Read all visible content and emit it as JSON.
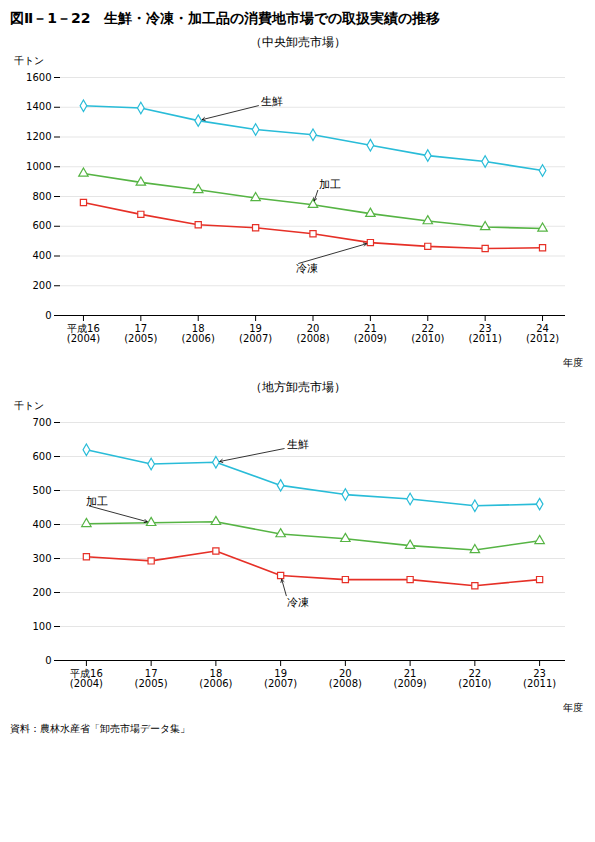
{
  "title": "図Ⅱ－1－22　生鮮・冷凍・加工品の消費地市場での取扱実績の推移",
  "source": "資料：農林水産省「卸売市場データ集」",
  "chart_data": [
    {
      "type": "line",
      "title": "（中央卸売市場）",
      "categories": [
        "平成16",
        "17",
        "18",
        "19",
        "20",
        "21",
        "22",
        "23",
        "24"
      ],
      "category_sublabels": [
        "(2004)",
        "(2005)",
        "(2006)",
        "(2007)",
        "(2008)",
        "(2009)",
        "(2010)",
        "(2011)",
        "(2012)"
      ],
      "xlabel": "年度",
      "ylabel": "千トン",
      "ylim": [
        0,
        1600
      ],
      "yticks": [
        0,
        200,
        400,
        600,
        800,
        1000,
        1200,
        1400,
        1600
      ],
      "grid": true,
      "series": [
        {
          "name": "生鮮",
          "color": "#29bcd8",
          "marker": "diamond",
          "values": [
            1410,
            1395,
            1310,
            1250,
            1215,
            1145,
            1075,
            1035,
            975
          ]
        },
        {
          "name": "加工",
          "color": "#56b444",
          "marker": "triangle",
          "values": [
            955,
            895,
            845,
            790,
            745,
            685,
            635,
            595,
            585
          ]
        },
        {
          "name": "冷凍",
          "color": "#e63027",
          "marker": "square",
          "values": [
            760,
            680,
            610,
            590,
            550,
            490,
            465,
            450,
            455
          ]
        }
      ],
      "annotations": [
        {
          "text": "生鮮",
          "x": "18",
          "y": 1310
        },
        {
          "text": "加工",
          "x": "20",
          "y": 745
        },
        {
          "text": "冷凍",
          "x": "21",
          "y": 490
        }
      ]
    },
    {
      "type": "line",
      "title": "（地方卸売市場）",
      "categories": [
        "平成16",
        "17",
        "18",
        "19",
        "20",
        "21",
        "22",
        "23"
      ],
      "category_sublabels": [
        "(2004)",
        "(2005)",
        "(2006)",
        "(2007)",
        "(2008)",
        "(2009)",
        "(2010)",
        "(2011)"
      ],
      "xlabel": "年度",
      "ylabel": "千トン",
      "ylim": [
        0,
        700
      ],
      "yticks": [
        0,
        100,
        200,
        300,
        400,
        500,
        600,
        700
      ],
      "grid": true,
      "series": [
        {
          "name": "生鮮",
          "color": "#29bcd8",
          "marker": "diamond",
          "values": [
            620,
            578,
            583,
            515,
            488,
            475,
            455,
            460
          ]
        },
        {
          "name": "加工",
          "color": "#56b444",
          "marker": "triangle",
          "values": [
            402,
            405,
            408,
            372,
            358,
            338,
            325,
            352
          ]
        },
        {
          "name": "冷凍",
          "color": "#e63027",
          "marker": "square",
          "values": [
            305,
            293,
            322,
            250,
            238,
            238,
            220,
            238
          ]
        }
      ],
      "annotations": [
        {
          "text": "生鮮",
          "x": "18",
          "y": 583
        },
        {
          "text": "加工",
          "x": "17",
          "y": 405
        },
        {
          "text": "冷凍",
          "x": "19",
          "y": 250
        }
      ]
    }
  ]
}
